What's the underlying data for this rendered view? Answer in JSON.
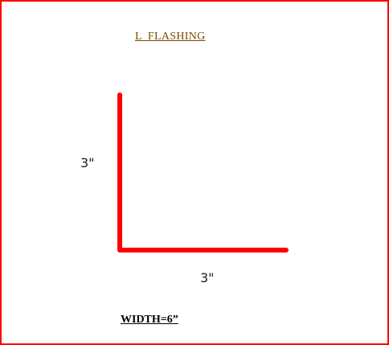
{
  "diagram": {
    "title": "L  FLASHING",
    "vertical_leg_label": "3\"",
    "horizontal_leg_label": "3\"",
    "width_label": "WIDTH=6”",
    "colors": {
      "border": "#ff0000",
      "profile_line": "#ff0000",
      "title_text": "#7a4a00",
      "dimension_text": "#222222"
    }
  }
}
